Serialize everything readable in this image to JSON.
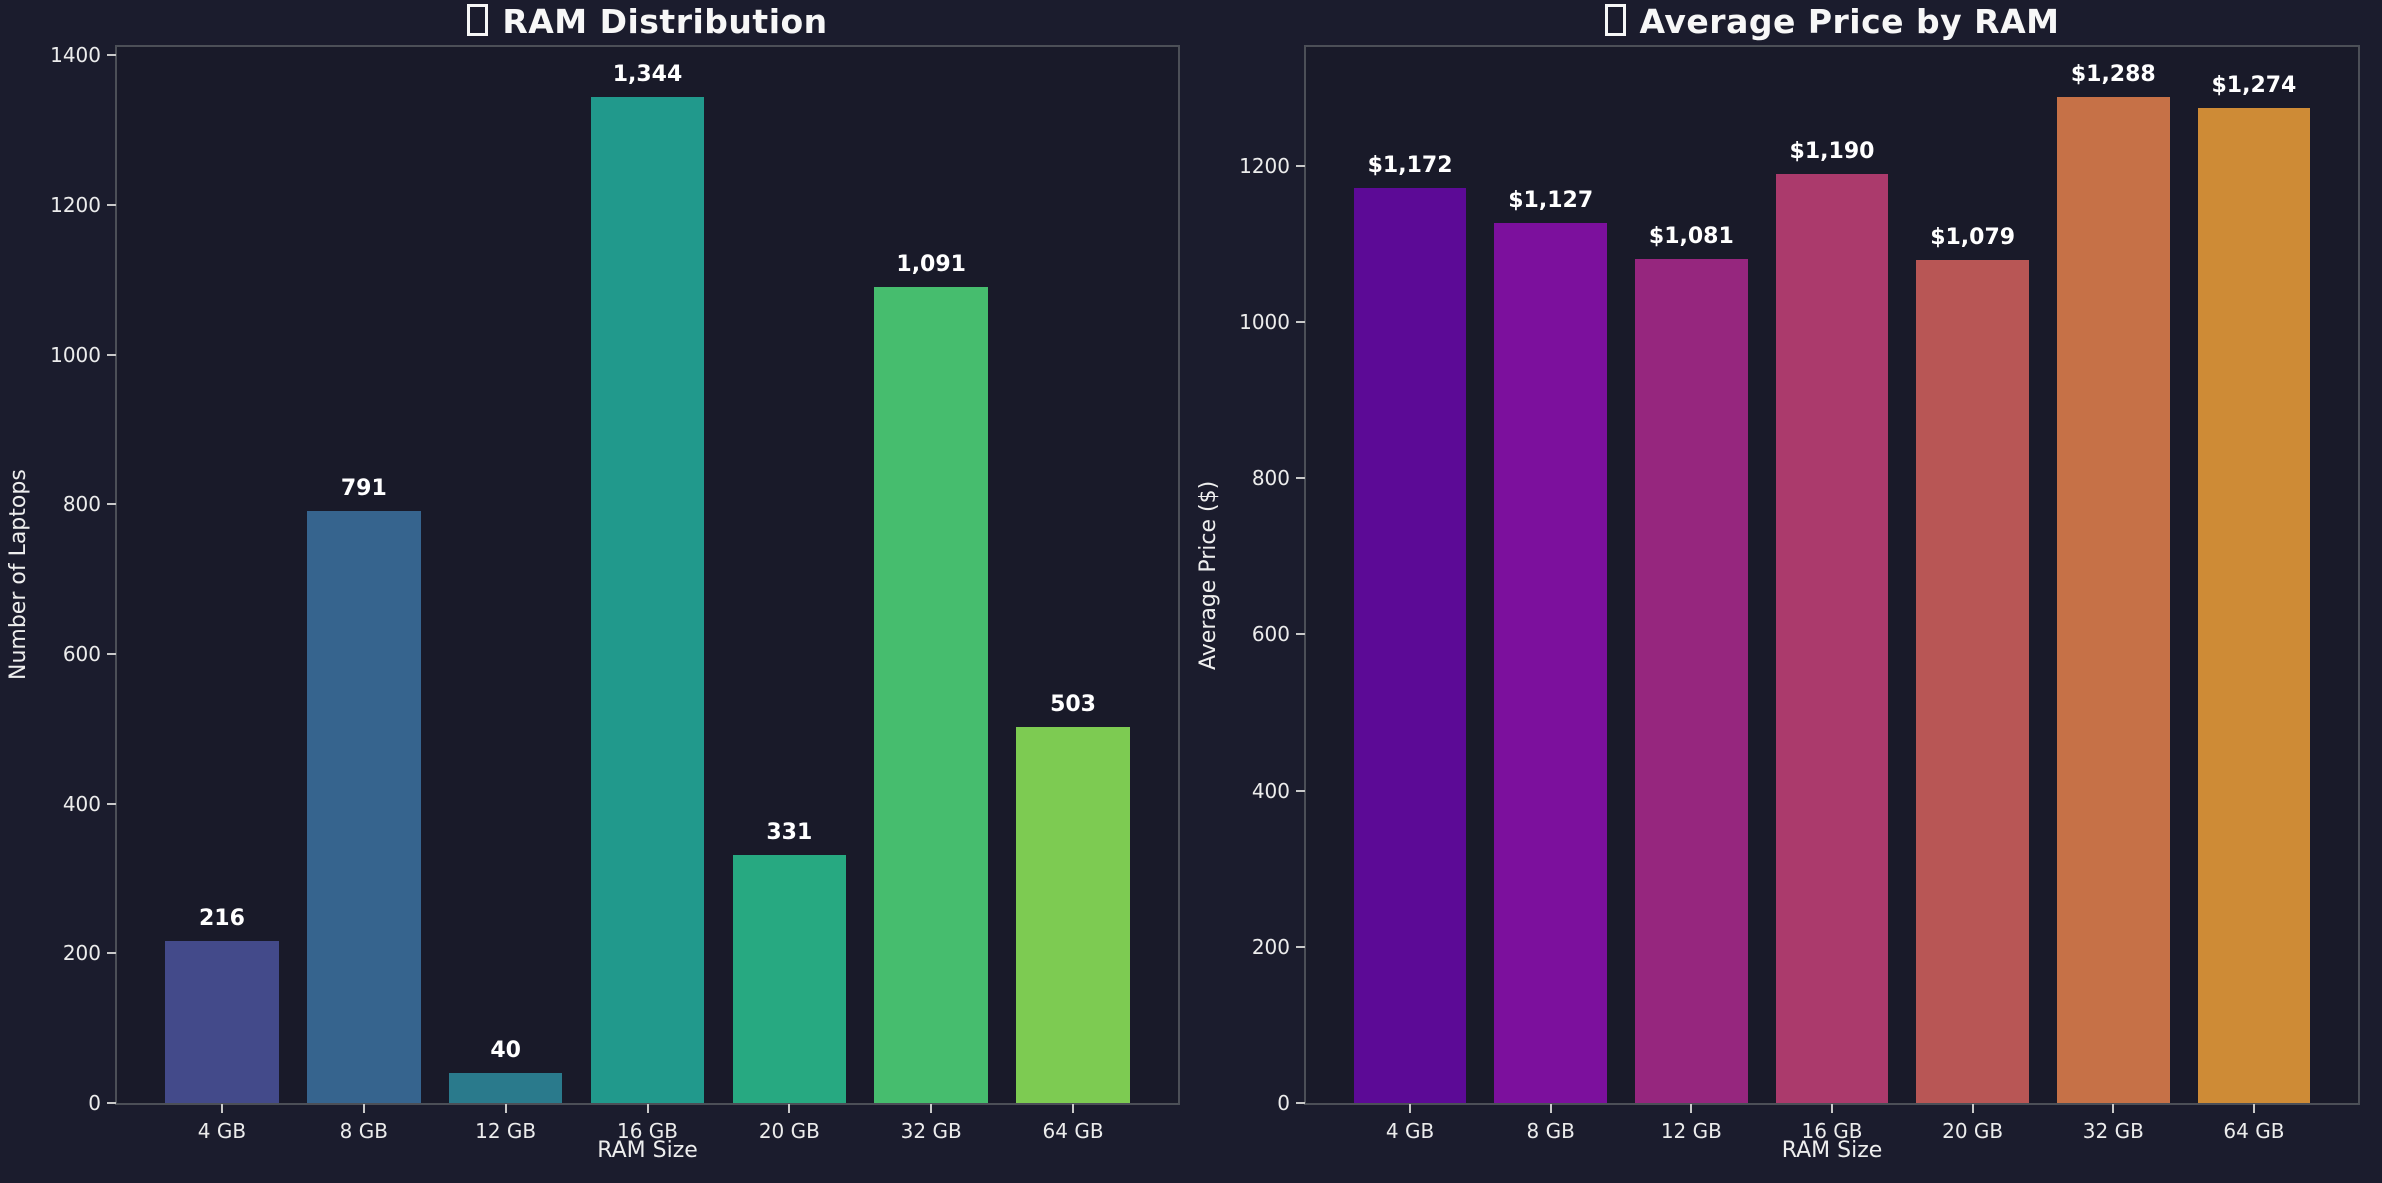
{
  "figure": {
    "background": "#1b1c2d",
    "axes_background": "#191a29",
    "spine_color": "#4c4f57",
    "tick_mark_color": "#c9c9c9",
    "tick_label_color": "#ececec",
    "axis_label_color": "#eeeeee",
    "title_color": "#f7f7f7",
    "value_label_color": "#ffffff"
  },
  "chart_data": [
    {
      "type": "bar",
      "title": "RAM Distribution",
      "title_icon": "missing-glyph-box",
      "xlabel": "RAM Size",
      "ylabel": "Number of Laptops",
      "categories": [
        "4 GB",
        "8 GB",
        "12 GB",
        "16 GB",
        "20 GB",
        "32 GB",
        "64 GB"
      ],
      "values": [
        216,
        791,
        40,
        1344,
        331,
        1091,
        503
      ],
      "value_labels": [
        "216",
        "791",
        "40",
        "1,344",
        "331",
        "1,091",
        "503"
      ],
      "bar_colors": [
        "#434a8a",
        "#36648e",
        "#2a7a8c",
        "#21998c",
        "#27a981",
        "#46bd6e",
        "#7dcb52"
      ],
      "y_ticks": [
        0,
        200,
        400,
        600,
        800,
        1000,
        1200,
        1400
      ],
      "ylim": [
        0,
        1411
      ],
      "grid": false,
      "legend": "none",
      "bar_width": 0.8,
      "x_pad": 0.74
    },
    {
      "type": "bar",
      "title": "Average Price by RAM",
      "title_icon": "missing-glyph-box",
      "xlabel": "RAM Size",
      "ylabel": "Average Price ($)",
      "categories": [
        "4 GB",
        "8 GB",
        "12 GB",
        "16 GB",
        "20 GB",
        "32 GB",
        "64 GB"
      ],
      "values": [
        1172,
        1127,
        1081,
        1190,
        1079,
        1288,
        1274
      ],
      "value_labels": [
        "$1,172",
        "$1,127",
        "$1,081",
        "$1,190",
        "$1,079",
        "$1,288",
        "$1,274"
      ],
      "bar_colors": [
        "#5c0a96",
        "#7c109d",
        "#96267e",
        "#ab3a6c",
        "#b85655",
        "#c67147",
        "#ce8b36"
      ],
      "y_ticks": [
        0,
        200,
        400,
        600,
        800,
        1000,
        1200
      ],
      "ylim": [
        0,
        1352
      ],
      "grid": false,
      "legend": "none",
      "bar_width": 0.8,
      "x_pad": 0.74
    }
  ]
}
